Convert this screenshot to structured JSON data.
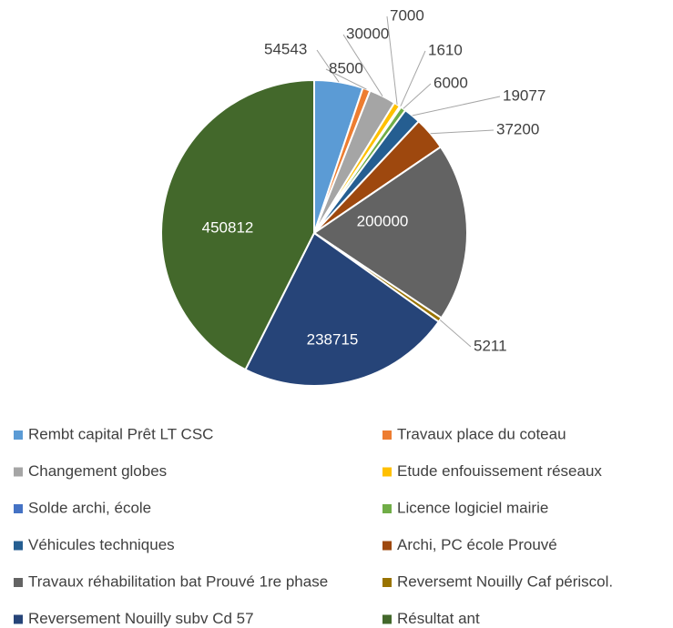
{
  "chart_data": {
    "type": "pie",
    "categories": [
      "Rembt capital Prêt LT CSC",
      "Travaux place du coteau",
      "Changement globes",
      "Etude enfouissement réseaux",
      "Solde archi, école",
      "Licence logiciel mairie",
      "Véhicules techniques",
      "Archi, PC école Prouvé",
      "Travaux réhabilitation bat Prouvé 1re phase",
      "Reversemt Nouilly Caf périscol.",
      "Reversement Nouilly subv Cd 57",
      "Résultat ant"
    ],
    "values": [
      54543,
      8500,
      30000,
      7000,
      1610,
      6000,
      19077,
      37200,
      200000,
      5211,
      238715,
      450812
    ],
    "colors": [
      "#5b9bd5",
      "#ed7d31",
      "#a5a5a5",
      "#ffc000",
      "#4472c4",
      "#70ad47",
      "#255e91",
      "#9e480e",
      "#636363",
      "#997300",
      "#264478",
      "#43682b"
    ],
    "legend": "bottom"
  }
}
